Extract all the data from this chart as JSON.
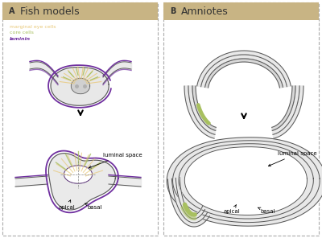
{
  "panel_a_title": "Fish models",
  "panel_b_title": "Amniotes",
  "label_a": "A",
  "label_b": "B",
  "header_color": "#c8b484",
  "bg_color": "#ffffff",
  "eye_fill": "#e8e8e8",
  "eye_fill2": "#e0e0e0",
  "eye_stroke": "#555555",
  "laminin_color": "#7030a0",
  "marginal_color": "#e8c878",
  "core_color": "#a8c060",
  "legend_labels": [
    "marginal eye cells",
    "core cells",
    "laminin"
  ],
  "legend_colors": [
    "#e8c878",
    "#a8c060",
    "#7030a0"
  ],
  "dpi": 100
}
